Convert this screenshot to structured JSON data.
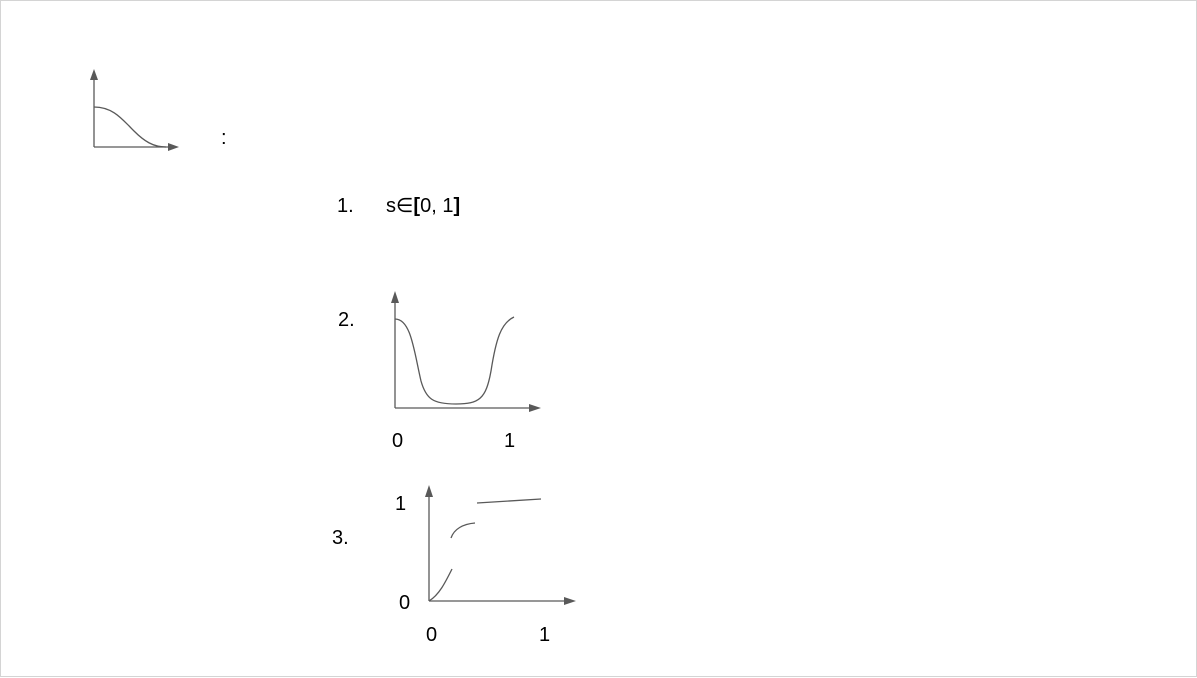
{
  "heading": {
    "colon": ":"
  },
  "items": [
    {
      "number": "1.",
      "formula": {
        "s": "s",
        "elem": "∈",
        "open": "[",
        "range": "0, 1",
        "close": "]"
      }
    },
    {
      "number": "2.",
      "tick_x0": "0",
      "tick_x1": "1"
    },
    {
      "number": "3.",
      "tick_y1": "1",
      "tick_y0": "0",
      "tick_x0": "0",
      "tick_x1": "1"
    }
  ],
  "colors": {
    "stroke": "#595959",
    "text": "#000000",
    "frame": "#d4d4d4"
  }
}
